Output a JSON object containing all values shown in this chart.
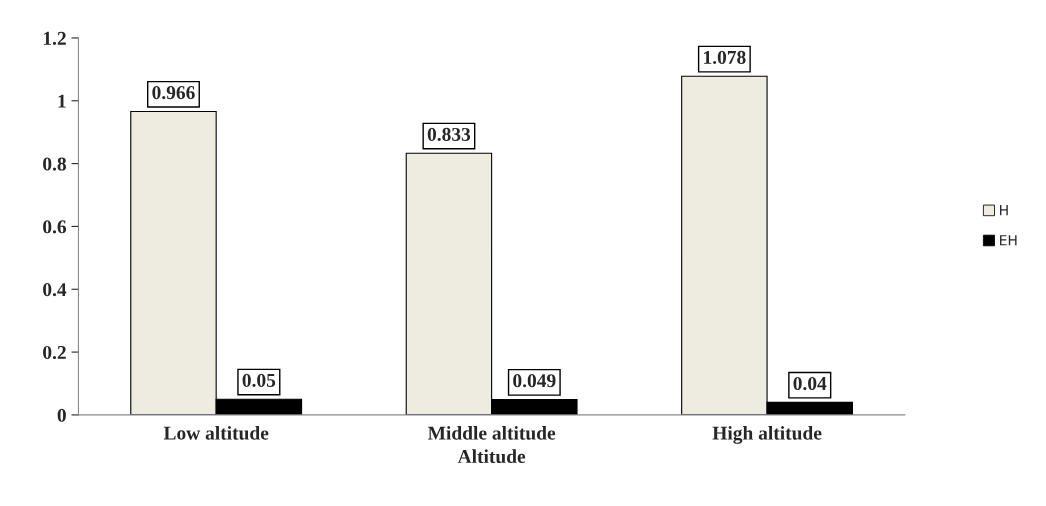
{
  "chart_data": {
    "type": "bar",
    "xlabel": "Altitude",
    "categories": [
      "Low altitude",
      "Middle altitude",
      "High altitude"
    ],
    "series": [
      {
        "name": "H",
        "color": "#eeece1",
        "values": [
          0.966,
          0.833,
          1.078
        ]
      },
      {
        "name": "EH",
        "color": "#000000",
        "values": [
          0.05,
          0.049,
          0.04
        ]
      }
    ],
    "ylim": [
      0,
      1.2
    ],
    "yticks": [
      0,
      0.2,
      0.4,
      0.6,
      0.8,
      1,
      1.2
    ],
    "data_labels": true,
    "grid": false,
    "legend": "right"
  }
}
